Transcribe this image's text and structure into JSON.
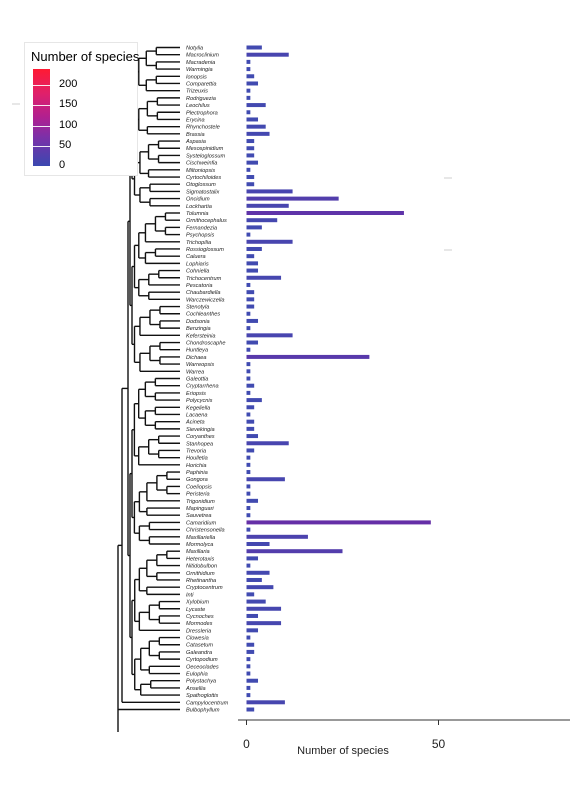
{
  "legend": {
    "title": "Number of species",
    "ticks": [
      "200",
      "150",
      "100",
      "50",
      "0"
    ],
    "tick_values": [
      200,
      150,
      100,
      50,
      0
    ],
    "max": 240,
    "color_low": "#3f4cb1",
    "color_high": "#ff1a33"
  },
  "chart_data": {
    "type": "bar",
    "orientation": "horizontal",
    "xlabel": "Number of species",
    "xticks": [
      "0",
      "50"
    ],
    "xlim": [
      0,
      86
    ],
    "grid": false,
    "legend_placement": "top-left",
    "bar_color": "#3f4cb1",
    "highlight_color": "#5a3aa8",
    "categories": [
      "Notylia",
      "Macroclinium",
      "Macradenia",
      "Warmingia",
      "Ionopsis",
      "Comparettia",
      "Trizeuxis",
      "Rodriguezia",
      "Leochilus",
      "Plectrophora",
      "Erycina",
      "Rhynchostele",
      "Brassia",
      "Aspasia",
      "Mesospinidium",
      "Systeloglossum",
      "Cischweinfia",
      "Miltoniopsis",
      "Cyrtochiloides",
      "Otoglossum",
      "Sigmatostalix",
      "Oncidium",
      "Lockhartia",
      "Tolumnia",
      "Ornithocephalus",
      "Fernandezia",
      "Psychopsis",
      "Trichopilia",
      "Rossioglossum",
      "Caluera",
      "Lophiaris",
      "Cohniella",
      "Trichocentrum",
      "Pescatoria",
      "Chaubardiella",
      "Warczewiczella",
      "Stenotyla",
      "Cochleanthes",
      "Dodsonia",
      "Benzingia",
      "Kefersteinia",
      "Chondroscaphe",
      "Huntleya",
      "Dichaea",
      "Warreopsis",
      "Warrea",
      "Galeottia",
      "Cryptarrhena",
      "Eriopsis",
      "Polycycnis",
      "Kegeliella",
      "Lacaena",
      "Acineta",
      "Sievekingia",
      "Coryanthes",
      "Stanhopea",
      "Trevoria",
      "Houlletia",
      "Horichia",
      "Paphinia",
      "Gongora",
      "Coeliopsis",
      "Peristeria",
      "Trigonidium",
      "Mapinguari",
      "Sauvetrea",
      "Camaridium",
      "Christensonella",
      "Maxillariella",
      "Mormolyca",
      "Maxillaria",
      "Heterotaxis",
      "Nitidobulbon",
      "Ornithidium",
      "Rhetinantha",
      "Cryptocentrum",
      "Inti",
      "Xylobium",
      "Lycaste",
      "Cycnoches",
      "Mormodes",
      "Dressleria",
      "Clowesia",
      "Catasetum",
      "Galeandra",
      "Cyrtopodium",
      "Oeceoclades",
      "Eulophia",
      "Polystachya",
      "Ansellia",
      "Spathoglottis",
      "Campylocentrum",
      "Bulbophyllum"
    ],
    "values": [
      4,
      11,
      1,
      1,
      2,
      3,
      1,
      1,
      5,
      1,
      3,
      5,
      6,
      2,
      2,
      2,
      3,
      1,
      2,
      2,
      12,
      24,
      11,
      41,
      8,
      4,
      1,
      12,
      4,
      2,
      3,
      3,
      9,
      1,
      2,
      2,
      2,
      1,
      3,
      1,
      12,
      3,
      1,
      32,
      1,
      1,
      1,
      2,
      1,
      4,
      2,
      1,
      2,
      2,
      3,
      11,
      2,
      1,
      1,
      1,
      10,
      1,
      1,
      3,
      1,
      1,
      48,
      1,
      16,
      6,
      25,
      3,
      1,
      6,
      4,
      7,
      2,
      5,
      9,
      3,
      9,
      3,
      1,
      2,
      2,
      1,
      1,
      1,
      3,
      1,
      1,
      10,
      2
    ]
  }
}
